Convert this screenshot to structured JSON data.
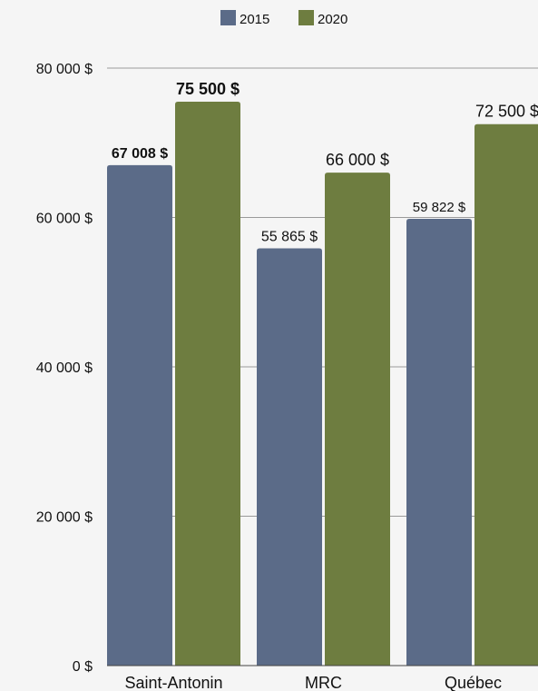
{
  "chart_data": {
    "type": "bar",
    "categories": [
      "Saint-Antonin",
      "MRC",
      "Québec"
    ],
    "series": [
      {
        "name": "2015",
        "values": [
          67008,
          55865,
          59822
        ],
        "labels": [
          "67 008 $",
          "55 865 $",
          "59 822 $"
        ],
        "color": "#5b6b88"
      },
      {
        "name": "2020",
        "values": [
          75500,
          66000,
          72500
        ],
        "labels": [
          "75 500 $",
          "66 000 $",
          "72 500 $"
        ],
        "color": "#6e7d40"
      }
    ],
    "ylim": [
      0,
      80000
    ],
    "yticks": [
      0,
      20000,
      40000,
      60000,
      80000
    ],
    "ytick_labels": [
      "0 $",
      "20 000 $",
      "40 000 $",
      "60 000 $",
      "80 000 $"
    ],
    "grid": true,
    "legend_position": "top-center",
    "xlabel": "",
    "ylabel": "",
    "title": ""
  }
}
